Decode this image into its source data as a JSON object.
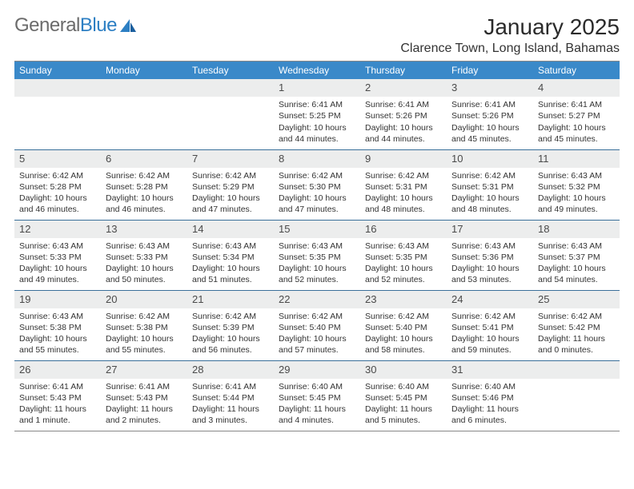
{
  "brand": {
    "general": "General",
    "blue": "Blue"
  },
  "title": "January 2025",
  "location": "Clarence Town, Long Island, Bahamas",
  "theme": {
    "header_bg": "#3a89c9",
    "header_text": "#ffffff",
    "daynum_bg": "#eceded",
    "rule_color": "#3a6f9a",
    "body_text": "#333333"
  },
  "daysOfWeek": [
    "Sunday",
    "Monday",
    "Tuesday",
    "Wednesday",
    "Thursday",
    "Friday",
    "Saturday"
  ],
  "weeks": [
    [
      null,
      null,
      null,
      {
        "n": "1",
        "sunrise": "6:41 AM",
        "sunset": "5:25 PM",
        "daylight": "10 hours and 44 minutes."
      },
      {
        "n": "2",
        "sunrise": "6:41 AM",
        "sunset": "5:26 PM",
        "daylight": "10 hours and 44 minutes."
      },
      {
        "n": "3",
        "sunrise": "6:41 AM",
        "sunset": "5:26 PM",
        "daylight": "10 hours and 45 minutes."
      },
      {
        "n": "4",
        "sunrise": "6:41 AM",
        "sunset": "5:27 PM",
        "daylight": "10 hours and 45 minutes."
      }
    ],
    [
      {
        "n": "5",
        "sunrise": "6:42 AM",
        "sunset": "5:28 PM",
        "daylight": "10 hours and 46 minutes."
      },
      {
        "n": "6",
        "sunrise": "6:42 AM",
        "sunset": "5:28 PM",
        "daylight": "10 hours and 46 minutes."
      },
      {
        "n": "7",
        "sunrise": "6:42 AM",
        "sunset": "5:29 PM",
        "daylight": "10 hours and 47 minutes."
      },
      {
        "n": "8",
        "sunrise": "6:42 AM",
        "sunset": "5:30 PM",
        "daylight": "10 hours and 47 minutes."
      },
      {
        "n": "9",
        "sunrise": "6:42 AM",
        "sunset": "5:31 PM",
        "daylight": "10 hours and 48 minutes."
      },
      {
        "n": "10",
        "sunrise": "6:42 AM",
        "sunset": "5:31 PM",
        "daylight": "10 hours and 48 minutes."
      },
      {
        "n": "11",
        "sunrise": "6:43 AM",
        "sunset": "5:32 PM",
        "daylight": "10 hours and 49 minutes."
      }
    ],
    [
      {
        "n": "12",
        "sunrise": "6:43 AM",
        "sunset": "5:33 PM",
        "daylight": "10 hours and 49 minutes."
      },
      {
        "n": "13",
        "sunrise": "6:43 AM",
        "sunset": "5:33 PM",
        "daylight": "10 hours and 50 minutes."
      },
      {
        "n": "14",
        "sunrise": "6:43 AM",
        "sunset": "5:34 PM",
        "daylight": "10 hours and 51 minutes."
      },
      {
        "n": "15",
        "sunrise": "6:43 AM",
        "sunset": "5:35 PM",
        "daylight": "10 hours and 52 minutes."
      },
      {
        "n": "16",
        "sunrise": "6:43 AM",
        "sunset": "5:35 PM",
        "daylight": "10 hours and 52 minutes."
      },
      {
        "n": "17",
        "sunrise": "6:43 AM",
        "sunset": "5:36 PM",
        "daylight": "10 hours and 53 minutes."
      },
      {
        "n": "18",
        "sunrise": "6:43 AM",
        "sunset": "5:37 PM",
        "daylight": "10 hours and 54 minutes."
      }
    ],
    [
      {
        "n": "19",
        "sunrise": "6:43 AM",
        "sunset": "5:38 PM",
        "daylight": "10 hours and 55 minutes."
      },
      {
        "n": "20",
        "sunrise": "6:42 AM",
        "sunset": "5:38 PM",
        "daylight": "10 hours and 55 minutes."
      },
      {
        "n": "21",
        "sunrise": "6:42 AM",
        "sunset": "5:39 PM",
        "daylight": "10 hours and 56 minutes."
      },
      {
        "n": "22",
        "sunrise": "6:42 AM",
        "sunset": "5:40 PM",
        "daylight": "10 hours and 57 minutes."
      },
      {
        "n": "23",
        "sunrise": "6:42 AM",
        "sunset": "5:40 PM",
        "daylight": "10 hours and 58 minutes."
      },
      {
        "n": "24",
        "sunrise": "6:42 AM",
        "sunset": "5:41 PM",
        "daylight": "10 hours and 59 minutes."
      },
      {
        "n": "25",
        "sunrise": "6:42 AM",
        "sunset": "5:42 PM",
        "daylight": "11 hours and 0 minutes."
      }
    ],
    [
      {
        "n": "26",
        "sunrise": "6:41 AM",
        "sunset": "5:43 PM",
        "daylight": "11 hours and 1 minute."
      },
      {
        "n": "27",
        "sunrise": "6:41 AM",
        "sunset": "5:43 PM",
        "daylight": "11 hours and 2 minutes."
      },
      {
        "n": "28",
        "sunrise": "6:41 AM",
        "sunset": "5:44 PM",
        "daylight": "11 hours and 3 minutes."
      },
      {
        "n": "29",
        "sunrise": "6:40 AM",
        "sunset": "5:45 PM",
        "daylight": "11 hours and 4 minutes."
      },
      {
        "n": "30",
        "sunrise": "6:40 AM",
        "sunset": "5:45 PM",
        "daylight": "11 hours and 5 minutes."
      },
      {
        "n": "31",
        "sunrise": "6:40 AM",
        "sunset": "5:46 PM",
        "daylight": "11 hours and 6 minutes."
      },
      null
    ]
  ],
  "labels": {
    "sunrise": "Sunrise:",
    "sunset": "Sunset:",
    "daylight": "Daylight:"
  }
}
